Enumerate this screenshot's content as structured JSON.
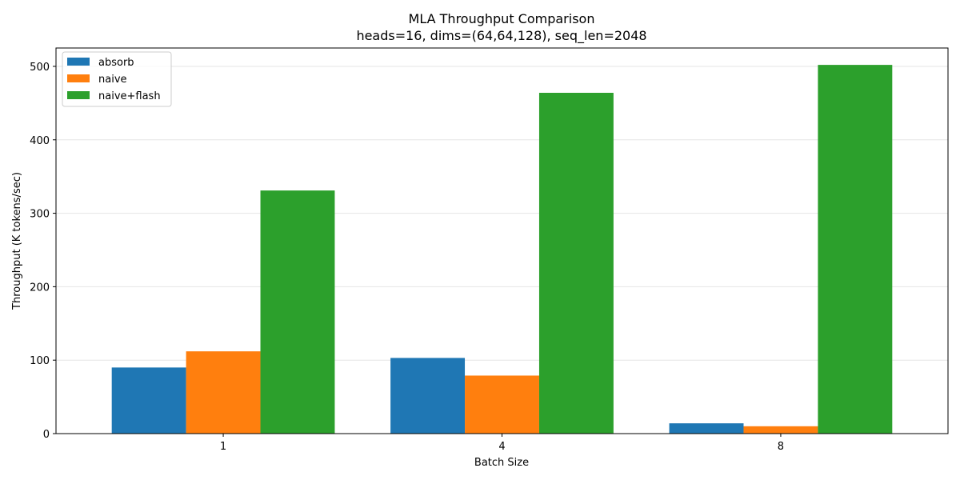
{
  "chart_data": {
    "type": "bar",
    "title": "MLA Throughput Comparison",
    "subtitle": "heads=16, dims=(64,64,128), seq_len=2048",
    "xlabel": "Batch Size",
    "ylabel": "Throughput (K tokens/sec)",
    "categories": [
      "1",
      "4",
      "8"
    ],
    "series": [
      {
        "name": "absorb",
        "color": "#1f77b4",
        "values": [
          90,
          103,
          14
        ]
      },
      {
        "name": "naive",
        "color": "#ff7f0e",
        "values": [
          112,
          79,
          10
        ]
      },
      {
        "name": "naive+flash",
        "color": "#2ca02c",
        "values": [
          331,
          464,
          502
        ]
      }
    ],
    "ylim": [
      0,
      525
    ],
    "yticks": [
      0,
      100,
      200,
      300,
      400,
      500
    ],
    "grid": "horizontal",
    "legend_position": "top-left"
  }
}
